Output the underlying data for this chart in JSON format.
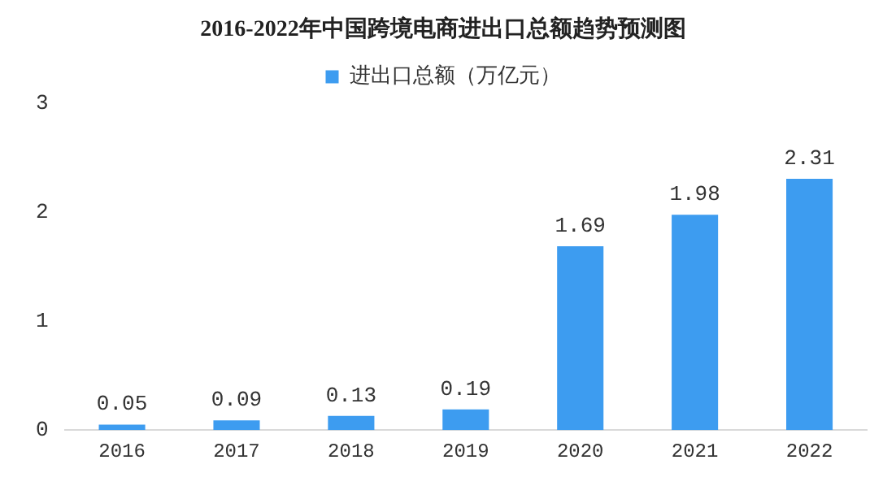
{
  "chart_data": {
    "type": "bar",
    "title": "2016-2022年中国跨境电商进出口总额趋势预测图",
    "categories": [
      "2016",
      "2017",
      "2018",
      "2019",
      "2020",
      "2021",
      "2022"
    ],
    "series": [
      {
        "name": "进出口总额（万亿元）",
        "color": "#3d9cf0",
        "values": [
          0.05,
          0.09,
          0.13,
          0.19,
          1.69,
          1.98,
          2.31
        ]
      }
    ],
    "ylim": [
      0,
      3
    ],
    "yticks": [
      0,
      1,
      2,
      3
    ],
    "grid": false,
    "legend": "top",
    "data_labels": true
  }
}
